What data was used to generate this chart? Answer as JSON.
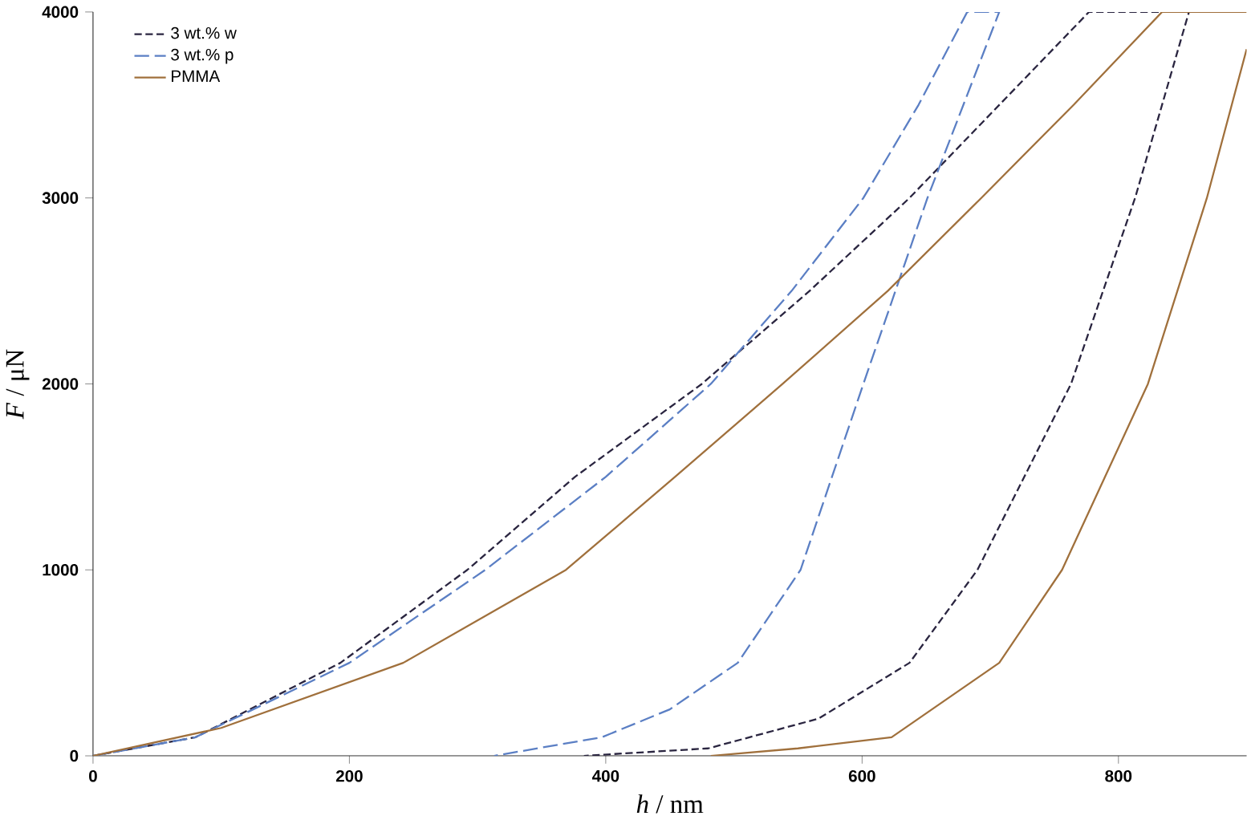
{
  "chart_data": {
    "type": "line",
    "xlabel": "*h* / nm",
    "ylabel": "*F* / μN",
    "xlim": [
      0,
      900
    ],
    "ylim": [
      0,
      4000
    ],
    "xticks": [
      0,
      200,
      400,
      600,
      800
    ],
    "yticks": [
      0,
      1000,
      2000,
      3000,
      4000
    ],
    "grid": false,
    "legend": "top left",
    "marker": "none",
    "series": [
      {
        "name": "3 wt.% w",
        "color": "#2a2540",
        "line_style": "dashed",
        "x": [
          0,
          80,
          193,
          292,
          376,
          475,
          559,
          637,
          707,
          777,
          855,
          813,
          763,
          690,
          637,
          566,
          480,
          383
        ],
        "values": [
          0,
          100,
          500,
          1000,
          1500,
          2000,
          2500,
          3000,
          3500,
          4000,
          4000,
          3000,
          2000,
          1000,
          500,
          200,
          40,
          0
        ]
      },
      {
        "name": "3 wt.% p",
        "color": "#5b7fc4",
        "line_style": "long dashed",
        "x": [
          0,
          80,
          200,
          306,
          400,
          482,
          545,
          601,
          644,
          682,
          707,
          651,
          601,
          552,
          503,
          450,
          397,
          313
        ],
        "values": [
          0,
          100,
          500,
          1000,
          1500,
          2000,
          2500,
          3000,
          3500,
          4000,
          4000,
          3000,
          2000,
          1000,
          500,
          250,
          100,
          0
        ]
      },
      {
        "name": "PMMA",
        "color": "#a0703c",
        "line_style": "solid",
        "x": [
          0,
          100,
          242,
          369,
          454,
          538,
          620,
          693,
          765,
          834,
          900
        ],
        "values": [
          0,
          150,
          500,
          1000,
          1500,
          2000,
          2500,
          3000,
          3500,
          4000,
          4000
        ]
      },
      {
        "color": "#a0703c",
        "line_style": "solid",
        "x": [
          482,
          550,
          623,
          707,
          756,
          823,
          869,
          900
        ],
        "values": [
          0,
          40,
          100,
          500,
          1000,
          2000,
          3000,
          3800
        ]
      }
    ]
  }
}
